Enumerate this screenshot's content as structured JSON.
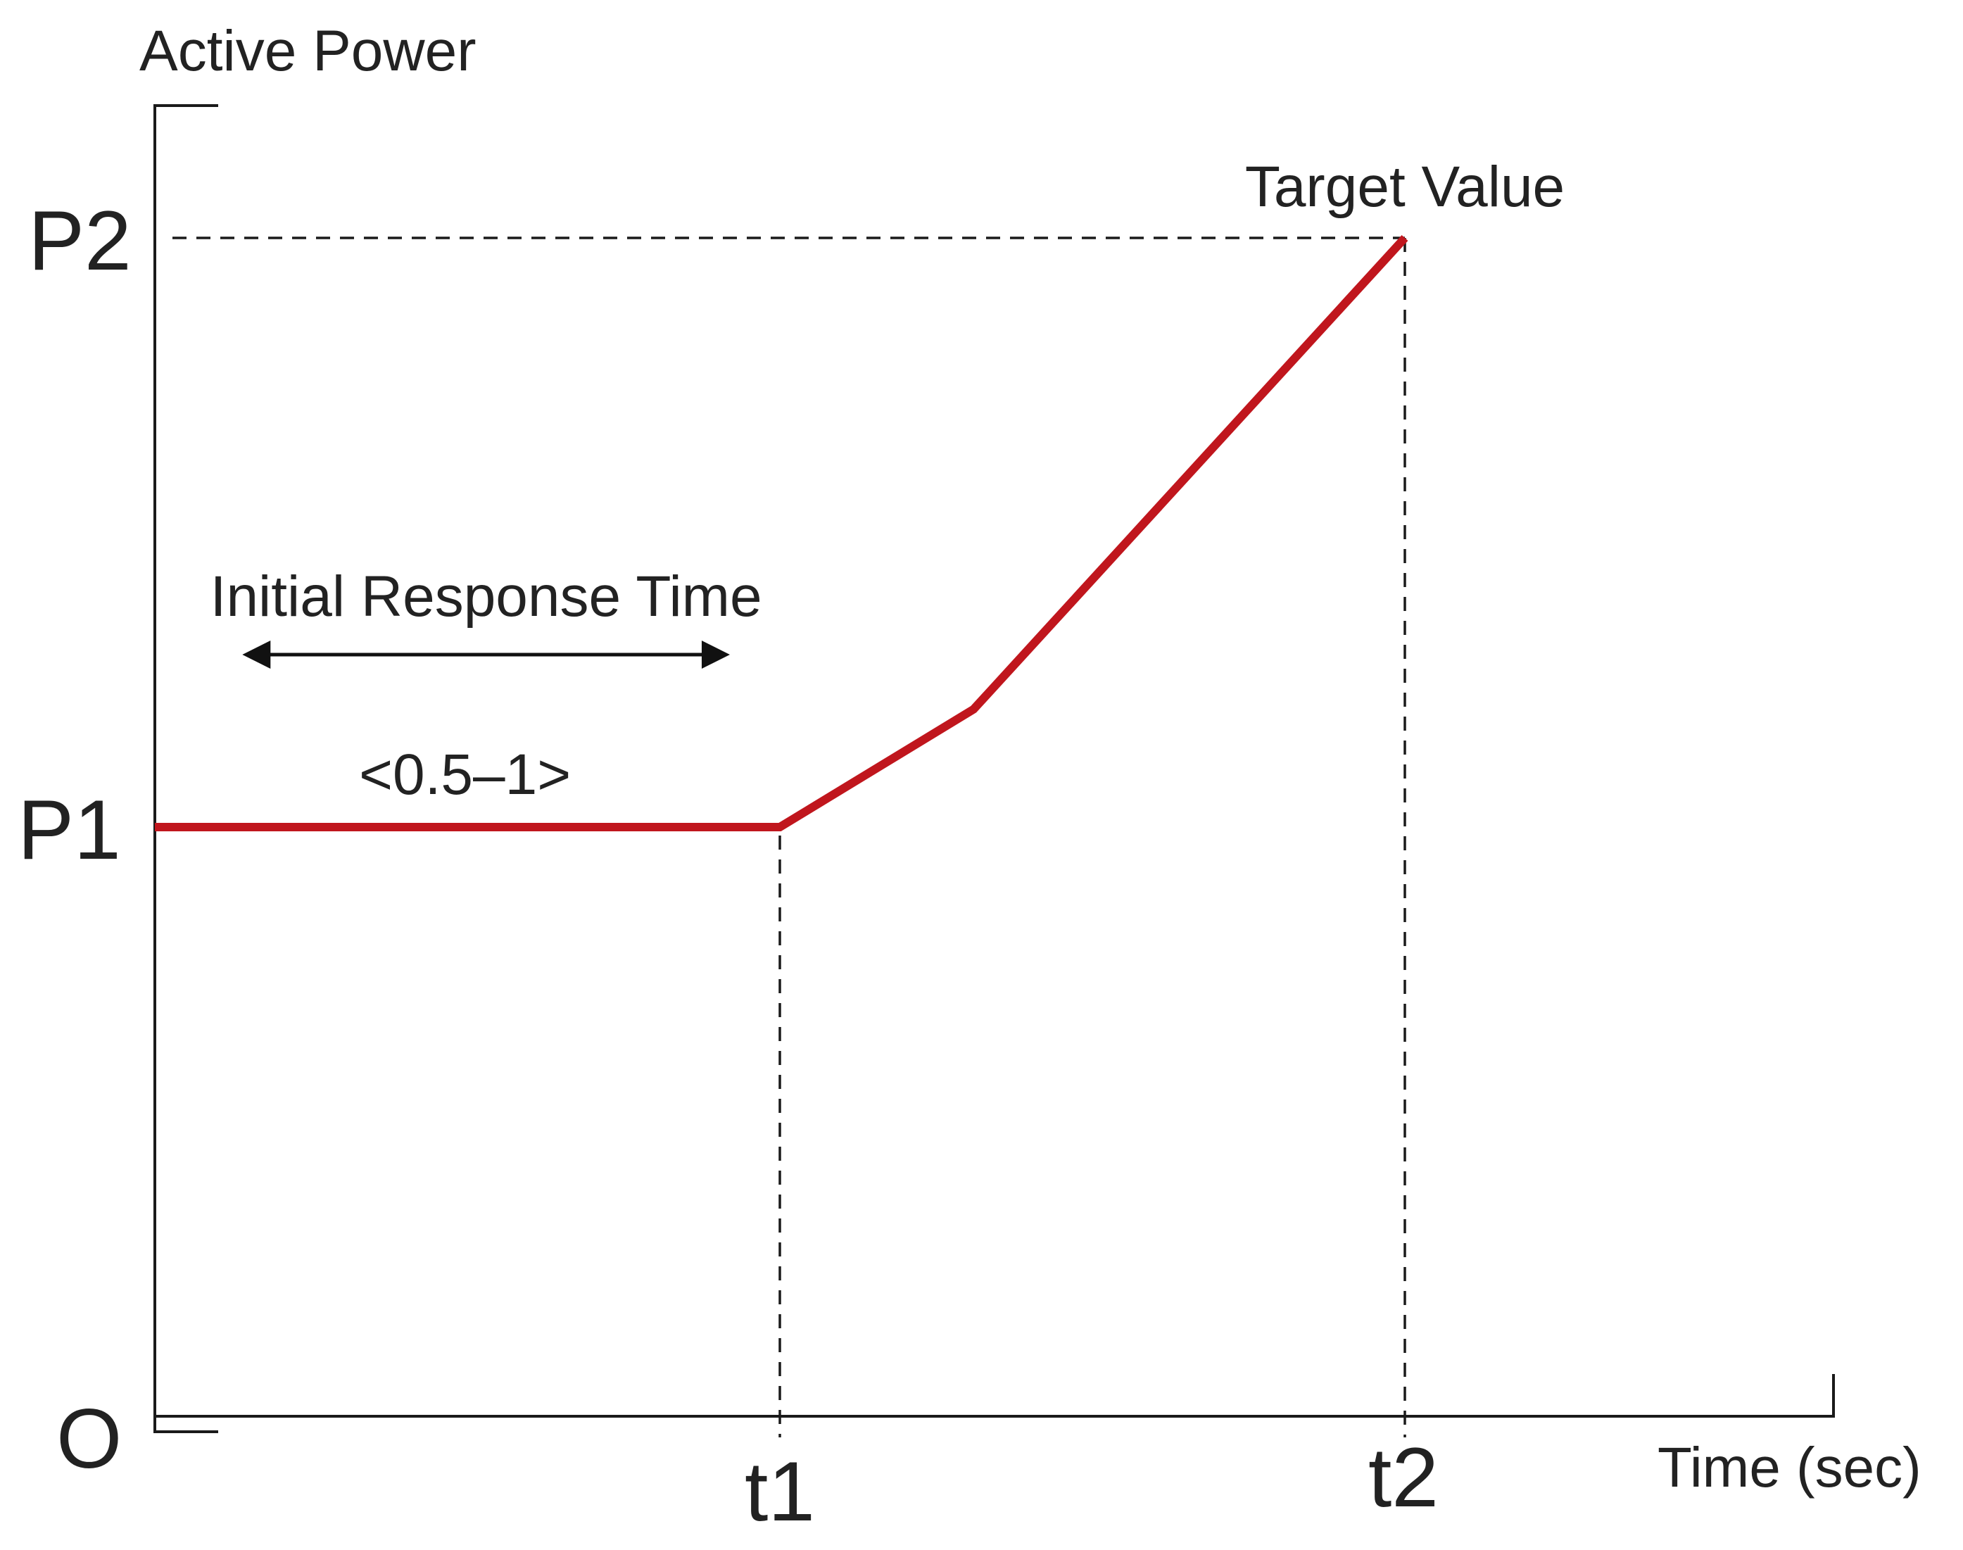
{
  "chart_data": {
    "type": "line",
    "title": "",
    "ylabel": "Active Power",
    "xlabel": "Time (sec)",
    "origin_label": "O",
    "y_ticks": [
      {
        "label": "P1",
        "value": 1
      },
      {
        "label": "P2",
        "value": 2
      }
    ],
    "x_ticks": [
      {
        "label": "t1",
        "value": 1
      },
      {
        "label": "t2",
        "value": 2
      }
    ],
    "xlim": [
      0,
      2.2
    ],
    "ylim": [
      0,
      2.22
    ],
    "grid": false,
    "guides": {
      "horizontal_at_y": 2,
      "vertical_at_x": [
        1,
        2
      ]
    },
    "series": [
      {
        "color": "#c0161d",
        "points": [
          {
            "x": 0,
            "y": 1
          },
          {
            "x": 1,
            "y": 1
          },
          {
            "x": 1.31,
            "y": 1.2
          },
          {
            "x": 2,
            "y": 2
          }
        ]
      }
    ],
    "annotations": {
      "target_label": "Target Value",
      "interval_label": "Initial Response Time",
      "interval_range": "<0.5–1>",
      "interval_x": [
        0.14,
        0.92
      ]
    }
  }
}
